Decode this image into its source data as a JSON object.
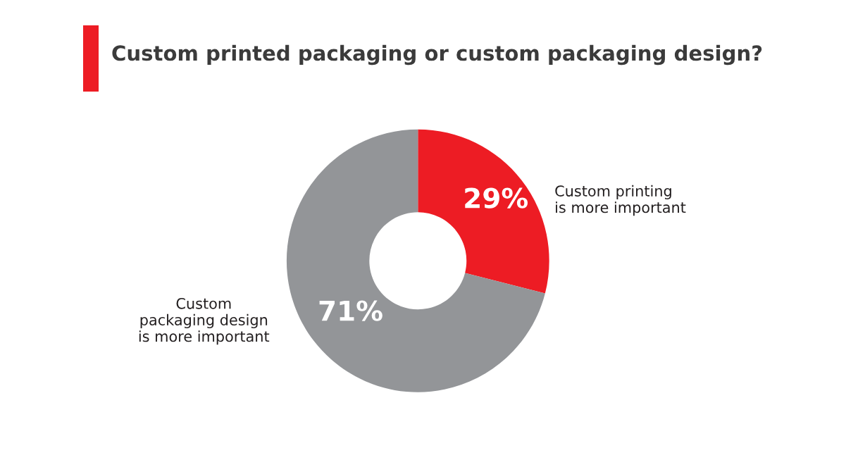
{
  "chart_data": {
    "type": "donut",
    "title": "Custom printed packaging or custom packaging design?",
    "categories": [
      "Custom printing\nis more important",
      "Custom\npackaging design\nis more important"
    ],
    "values": [
      29,
      71
    ],
    "colors": [
      "#ed1c24",
      "#939598"
    ],
    "value_labels": [
      "29%",
      "71%"
    ],
    "legend": false
  }
}
